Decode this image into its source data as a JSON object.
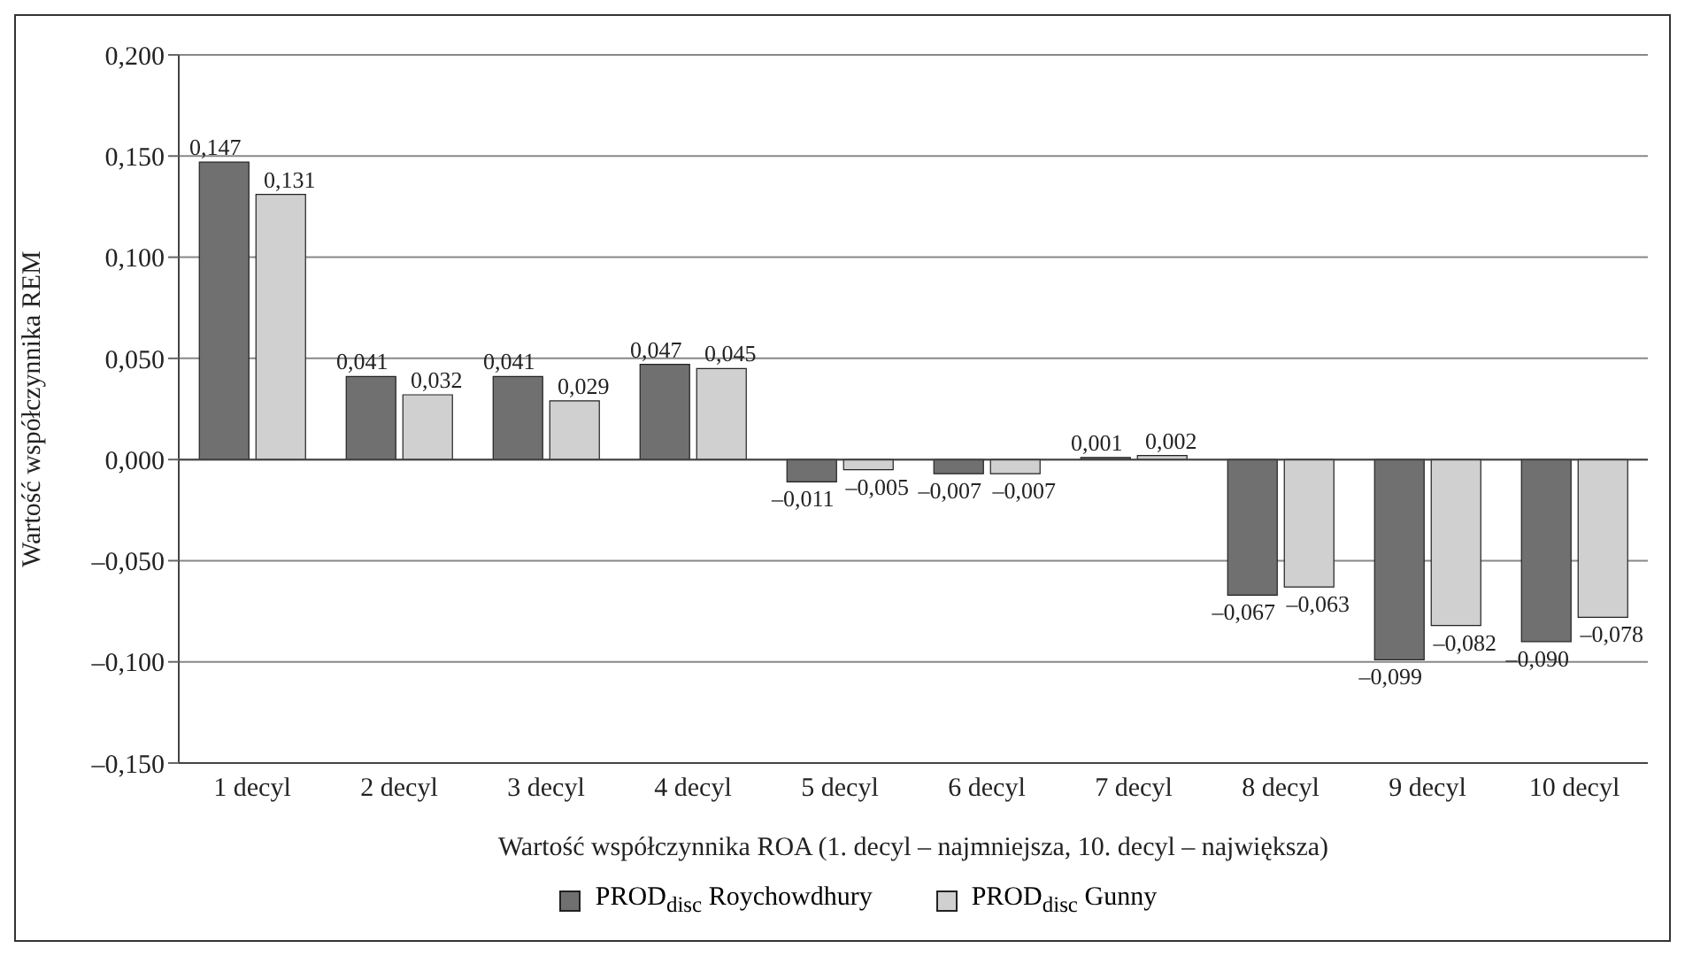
{
  "chart_data": {
    "type": "bar",
    "xlabel": "Wartość współczynnika ROA (1. decyl – najmniejsza, 10. decyl – największa)",
    "ylabel": "Wartość współczynnika REM",
    "categories": [
      "1 decyl",
      "2 decyl",
      "3 decyl",
      "4 decyl",
      "5 decyl",
      "6 decyl",
      "7 decyl",
      "8 decyl",
      "9 decyl",
      "10 decyl"
    ],
    "series": [
      {
        "name": "PROD$_{disc}$ Roychowdhury",
        "color": "#707070",
        "values": [
          0.147,
          0.041,
          0.041,
          0.047,
          -0.011,
          -0.007,
          0.001,
          -0.067,
          -0.099,
          -0.09
        ],
        "value_labels": [
          "0,147",
          "0,041",
          "0,041",
          "0,047",
          "–0,011",
          "–0,007",
          "0,001",
          "–0,067",
          "–0,099",
          "–0,090"
        ]
      },
      {
        "name": "PROD$_{disc}$ Gunny",
        "color": "#d0d0d0",
        "values": [
          0.131,
          0.032,
          0.029,
          0.045,
          -0.005,
          -0.007,
          0.002,
          -0.063,
          -0.082,
          -0.078
        ],
        "value_labels": [
          "0,131",
          "0,032",
          "0,029",
          "0,045",
          "–0,005",
          "–0,007",
          "0,002",
          "–0,063",
          "–0,082",
          "–0,078"
        ]
      }
    ],
    "ylim": [
      -0.15,
      0.2
    ],
    "yticks": [
      {
        "value": -0.15,
        "label": "–0,150"
      },
      {
        "value": -0.1,
        "label": "–0,100"
      },
      {
        "value": -0.05,
        "label": "–0,050"
      },
      {
        "value": 0,
        "label": "0,000"
      },
      {
        "value": 0.05,
        "label": "0,050"
      },
      {
        "value": 0.1,
        "label": "0,100"
      },
      {
        "value": 0.15,
        "label": "0,150"
      },
      {
        "value": 0.2,
        "label": "0,200"
      }
    ],
    "grid": "y",
    "legend": "bottom"
  }
}
